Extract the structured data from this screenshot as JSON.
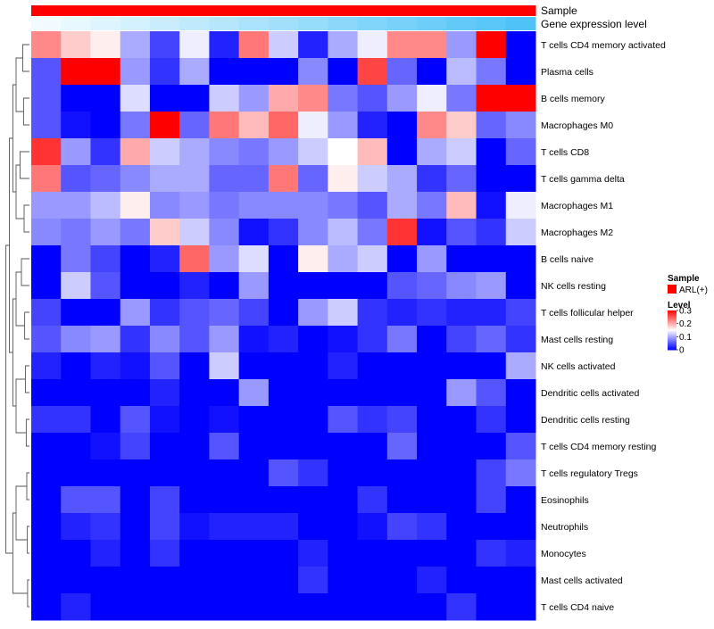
{
  "chart_data": {
    "type": "heatmap",
    "annotations": [
      {
        "name": "Sample",
        "kind": "categorical",
        "color": "#FF0000"
      },
      {
        "name": "Gene expression level",
        "kind": "gradient",
        "color_low": "#F2FBFF",
        "color_high": "#4FC3F7"
      }
    ],
    "rows": [
      "T cells CD4 memory activated",
      "Plasma cells",
      "B cells memory",
      "Macrophages M0",
      "T cells CD8",
      "T cells gamma delta",
      "Macrophages M1",
      "Macrophages M2",
      "B cells naive",
      "NK cells resting",
      "T cells follicular helper",
      "Mast cells resting",
      "NK cells activated",
      "Dendritic cells activated",
      "Dendritic cells resting",
      "T cells CD4 memory resting",
      "T cells regulatory  Tregs",
      "Eosinophils",
      "Neutrophils",
      "Monocytes",
      "Mast cells activated",
      "T cells CD4 naive"
    ],
    "n_columns": 17,
    "values": [
      [
        0.22,
        0.18,
        0.16,
        0.1,
        0.04,
        0.14,
        0.02,
        0.23,
        0.12,
        0.02,
        0.1,
        0.14,
        0.22,
        0.22,
        0.09,
        0.3,
        0.0
      ],
      [
        0.05,
        0.3,
        0.3,
        0.09,
        0.03,
        0.1,
        0.0,
        0.0,
        0.0,
        0.08,
        0.0,
        0.26,
        0.06,
        0.0,
        0.11,
        0.07,
        0.0
      ],
      [
        0.05,
        0.0,
        0.0,
        0.13,
        0.0,
        0.0,
        0.12,
        0.09,
        0.2,
        0.22,
        0.07,
        0.05,
        0.09,
        0.14,
        0.07,
        0.3,
        0.3
      ],
      [
        0.05,
        0.01,
        0.0,
        0.07,
        0.3,
        0.06,
        0.23,
        0.19,
        0.24,
        0.14,
        0.09,
        0.02,
        0.0,
        0.22,
        0.18,
        0.06,
        0.08
      ],
      [
        0.27,
        0.09,
        0.03,
        0.2,
        0.12,
        0.1,
        0.08,
        0.07,
        0.09,
        0.12,
        0.15,
        0.19,
        0.0,
        0.1,
        0.12,
        0.0,
        0.06
      ],
      [
        0.23,
        0.05,
        0.06,
        0.08,
        0.1,
        0.1,
        0.06,
        0.06,
        0.23,
        0.06,
        0.16,
        0.12,
        0.1,
        0.03,
        0.06,
        0.0,
        0.0
      ],
      [
        0.09,
        0.09,
        0.11,
        0.16,
        0.08,
        0.09,
        0.07,
        0.08,
        0.08,
        0.08,
        0.07,
        0.05,
        0.1,
        0.07,
        0.19,
        0.01,
        0.14
      ],
      [
        0.08,
        0.07,
        0.09,
        0.07,
        0.18,
        0.12,
        0.08,
        0.01,
        0.03,
        0.08,
        0.11,
        0.07,
        0.27,
        0.01,
        0.05,
        0.03,
        0.12
      ],
      [
        0.0,
        0.07,
        0.04,
        0.0,
        0.02,
        0.24,
        0.09,
        0.13,
        0.0,
        0.16,
        0.1,
        0.12,
        0.0,
        0.09,
        0.0,
        0.0,
        0.0
      ],
      [
        0.0,
        0.12,
        0.05,
        0.0,
        0.0,
        0.02,
        0.0,
        0.09,
        0.0,
        0.0,
        0.0,
        0.0,
        0.05,
        0.06,
        0.08,
        0.09,
        0.0
      ],
      [
        0.04,
        0.0,
        0.0,
        0.09,
        0.03,
        0.05,
        0.06,
        0.04,
        0.0,
        0.09,
        0.12,
        0.03,
        0.02,
        0.03,
        0.02,
        0.02,
        0.04
      ],
      [
        0.05,
        0.08,
        0.09,
        0.03,
        0.08,
        0.05,
        0.09,
        0.01,
        0.02,
        0.0,
        0.01,
        0.03,
        0.07,
        0.0,
        0.04,
        0.06,
        0.03
      ],
      [
        0.02,
        0.0,
        0.02,
        0.01,
        0.05,
        0.0,
        0.12,
        0.0,
        0.0,
        0.0,
        0.02,
        0.0,
        0.0,
        0.0,
        0.0,
        0.0,
        0.1
      ],
      [
        0.0,
        0.0,
        0.0,
        0.0,
        0.02,
        0.0,
        0.0,
        0.09,
        0.0,
        0.0,
        0.0,
        0.0,
        0.0,
        0.0,
        0.09,
        0.05,
        0.0
      ],
      [
        0.03,
        0.03,
        0.0,
        0.05,
        0.01,
        0.0,
        0.01,
        0.0,
        0.0,
        0.0,
        0.05,
        0.03,
        0.04,
        0.0,
        0.0,
        0.03,
        0.0
      ],
      [
        0.0,
        0.0,
        0.01,
        0.04,
        0.0,
        0.0,
        0.05,
        0.0,
        0.0,
        0.0,
        0.0,
        0.0,
        0.06,
        0.0,
        0.0,
        0.0,
        0.05
      ],
      [
        0.0,
        0.0,
        0.0,
        0.0,
        0.0,
        0.0,
        0.0,
        0.0,
        0.05,
        0.03,
        0.0,
        0.0,
        0.0,
        0.0,
        0.0,
        0.04,
        0.07
      ],
      [
        0.0,
        0.05,
        0.05,
        0.0,
        0.04,
        0.0,
        0.0,
        0.0,
        0.0,
        0.0,
        0.0,
        0.03,
        0.0,
        0.0,
        0.0,
        0.04,
        0.0
      ],
      [
        0.0,
        0.02,
        0.03,
        0.0,
        0.04,
        0.01,
        0.02,
        0.02,
        0.02,
        0.0,
        0.0,
        0.01,
        0.04,
        0.03,
        0.0,
        0.0,
        0.0
      ],
      [
        0.0,
        0.0,
        0.02,
        0.0,
        0.03,
        0.0,
        0.0,
        0.0,
        0.0,
        0.02,
        0.0,
        0.0,
        0.0,
        0.0,
        0.0,
        0.03,
        0.02
      ],
      [
        0.0,
        0.0,
        0.0,
        0.0,
        0.0,
        0.0,
        0.0,
        0.0,
        0.0,
        0.03,
        0.0,
        0.0,
        0.0,
        0.02,
        0.0,
        0.0,
        0.0
      ],
      [
        0.0,
        0.02,
        0.0,
        0.0,
        0.0,
        0.0,
        0.0,
        0.0,
        0.0,
        0.0,
        0.0,
        0.0,
        0.0,
        0.0,
        0.03,
        0.0,
        0.0
      ]
    ],
    "value_range": [
      0,
      0.3
    ],
    "colors": {
      "low": "#0000FF",
      "mid": "#FFFFFF",
      "high": "#FF0000",
      "mid_value": 0.15
    },
    "legend": {
      "position": "right",
      "sample_title": "Sample",
      "sample_entry": "ARL(+)",
      "sample_color": "#FF0000",
      "level_title": "Level",
      "level_ticks": [
        "0.3",
        "0.2",
        "0.1",
        "0"
      ],
      "level_tick_values": [
        0.3,
        0.2,
        0.1,
        0
      ]
    },
    "row_dendrogram": true
  }
}
